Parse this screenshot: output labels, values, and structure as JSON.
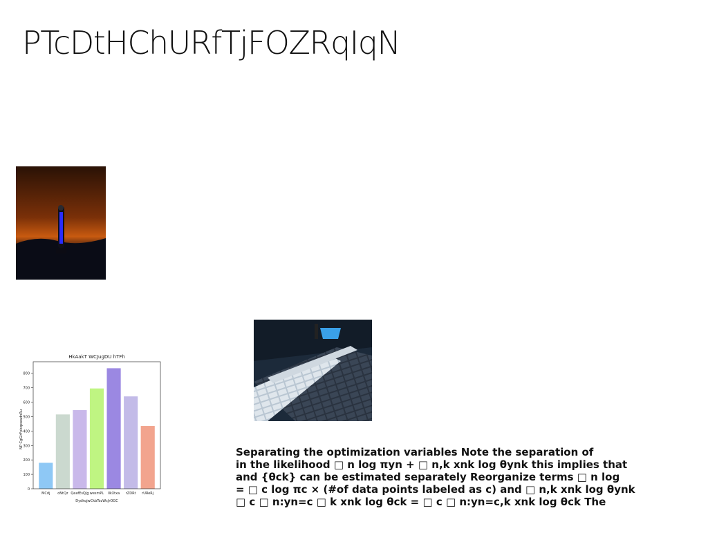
{
  "document": {
    "title": "PTcDtHChURfTjFOZRqIqN",
    "paragraph_lines": [
      "Separating the optimization variables Note the separation of",
      "in the likelihood □ n log πyn + □ n,k xnk log θynk this implies that",
      "and {θck} can be estimated separately Reorganize terms □ n log",
      "= □ c log πc × (#of data points labeled as c) and □ n,k xnk log θynk",
      "□ c □ n:yn=c □ k xnk log θck = □ c □ n:yn=c,k xnk log θck The"
    ]
  },
  "images": {
    "photo_1": {
      "name": "tower-at-dusk-photo",
      "colors": {
        "sky_top": "#2a1206",
        "sky_glow": "#c85a10",
        "ground": "#05060c",
        "tower_light": "#2a2cff"
      }
    },
    "photo_2": {
      "name": "stone-stairs-photo",
      "colors": {
        "shadow": "#1c2a3a",
        "sunlit": "#dfe6ec",
        "water": "#3aa0e8"
      }
    }
  },
  "chart_data": {
    "type": "bar",
    "title": "HkAakT WCJugDU hTFh",
    "xlabel": "DydkqjwCkbTozWcJrOGC",
    "ylabel": "NP CgGlrFpbqewadnRu",
    "categories": [
      "MCdj",
      "oNtQz",
      "QeafEsQJg",
      "wesmPL",
      "IlkXtxa",
      "rZDRt",
      "rUReRj"
    ],
    "values": [
      180,
      515,
      545,
      695,
      835,
      640,
      435
    ],
    "colors": [
      "#8ec8f5",
      "#cbd9cf",
      "#c9b8ea",
      "#bff582",
      "#9b88e2",
      "#c3bbe8",
      "#f2a48e"
    ],
    "ylim": [
      0,
      880
    ],
    "yticks": [
      0,
      100,
      200,
      300,
      400,
      500,
      600,
      700,
      800
    ],
    "grid": false
  }
}
